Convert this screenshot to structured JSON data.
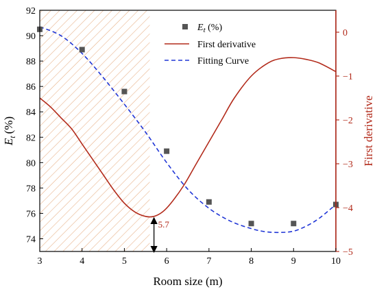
{
  "chart_data": {
    "type": "line",
    "xlabel": "Room size (m)",
    "ylabel_left": "E_t (%)",
    "ylabel_left_main": "E",
    "ylabel_left_sub": "t",
    "ylabel_left_unit": "(%)",
    "ylabel_right": "First derivative",
    "xlim": [
      3,
      10
    ],
    "ylim_left": [
      73,
      92
    ],
    "ylim_right": [
      -5,
      0.5
    ],
    "x_ticks": [
      3,
      4,
      5,
      6,
      7,
      8,
      9,
      10
    ],
    "y_left_ticks": [
      74,
      76,
      78,
      80,
      82,
      84,
      86,
      88,
      90,
      92
    ],
    "y_right_ticks": [
      0,
      -1,
      -2,
      -3,
      -4,
      -5
    ],
    "series": [
      {
        "name": "E_t (%)",
        "legend_main": "E",
        "legend_sub": "t",
        "legend_unit": " (%)",
        "kind": "scatter",
        "axis": "left",
        "x": [
          3,
          4,
          5,
          6,
          7,
          8,
          9,
          10
        ],
        "y": [
          90.5,
          88.9,
          85.6,
          80.9,
          76.9,
          75.2,
          75.2,
          76.7
        ]
      },
      {
        "name": "First derivative",
        "kind": "line",
        "axis": "right",
        "x": [
          3,
          3.25,
          3.5,
          3.75,
          4,
          4.25,
          4.5,
          4.75,
          5,
          5.25,
          5.5,
          5.7,
          5.9,
          6.1,
          6.4,
          6.7,
          7,
          7.3,
          7.6,
          8,
          8.4,
          8.7,
          9,
          9.3,
          9.6,
          10
        ],
        "y": [
          -1.5,
          -1.7,
          -1.95,
          -2.2,
          -2.55,
          -2.9,
          -3.25,
          -3.6,
          -3.9,
          -4.1,
          -4.2,
          -4.2,
          -4.1,
          -3.9,
          -3.5,
          -3.0,
          -2.5,
          -2.0,
          -1.5,
          -1.0,
          -0.7,
          -0.6,
          -0.58,
          -0.62,
          -0.7,
          -0.9
        ]
      },
      {
        "name": "Fitting Curve",
        "kind": "dashed-line",
        "axis": "left",
        "x": [
          3,
          3.5,
          4,
          4.5,
          5,
          5.5,
          6,
          6.5,
          7,
          7.5,
          8,
          8.35,
          8.7,
          9,
          9.3,
          9.6,
          10
        ],
        "y": [
          90.7,
          90.0,
          88.6,
          86.7,
          84.6,
          82.4,
          80.0,
          77.9,
          76.4,
          75.4,
          74.8,
          74.55,
          74.5,
          74.6,
          75.0,
          75.6,
          76.7
        ]
      }
    ],
    "annotation": {
      "text": "5.7",
      "x": 5.7
    },
    "hatch_region_x": [
      3,
      5.6
    ],
    "colors": {
      "scatter": "#555555",
      "derivative": "#b22a1a",
      "fitting": "#1f35d6",
      "hatch": "#e8b48c",
      "right_axis": "#b22a1a"
    },
    "legend_position": "top-right"
  }
}
